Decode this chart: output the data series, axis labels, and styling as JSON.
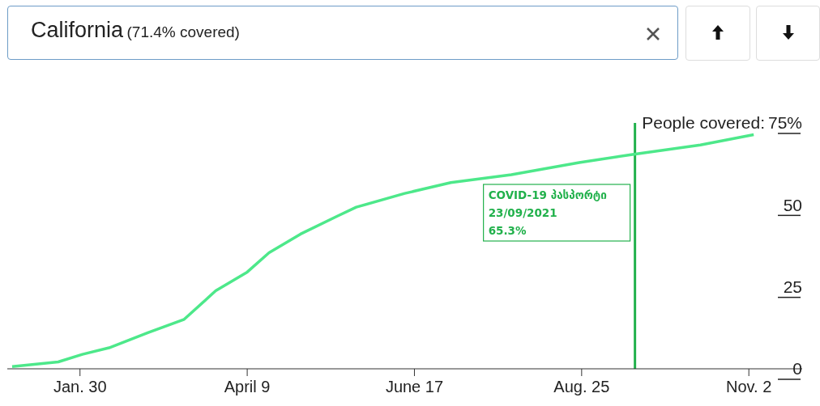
{
  "chart_data": {
    "type": "line",
    "title": "California",
    "subtitle": "(71.4% covered)",
    "ylabel": "People covered:",
    "x": [
      "2021-01-02",
      "2021-01-21",
      "2021-01-31",
      "2021-02-11",
      "2021-02-27",
      "2021-03-14",
      "2021-03-27",
      "2021-04-09",
      "2021-04-18",
      "2021-05-01",
      "2021-05-16",
      "2021-05-24",
      "2021-06-13",
      "2021-07-02",
      "2021-07-27",
      "2021-08-24",
      "2021-09-15",
      "2021-10-13",
      "2021-11-04"
    ],
    "series": [
      {
        "color": "#4de88a",
        "values": [
          0.7,
          2.1,
          4.4,
          6.4,
          11.0,
          15.1,
          23.8,
          29.5,
          35.4,
          41.1,
          46.5,
          49.3,
          53.5,
          56.8,
          59.2,
          62.9,
          65.4,
          68.3,
          71.4
        ]
      }
    ],
    "xlim": [
      "2020-12-31",
      "2021-11-24"
    ],
    "xticks": [
      {
        "value": "2021-01-30",
        "label": "Jan. 30"
      },
      {
        "value": "2021-04-09",
        "label": "April 9"
      },
      {
        "value": "2021-06-17",
        "label": "June 17"
      },
      {
        "value": "2021-08-25",
        "label": "Aug. 25"
      },
      {
        "value": "2021-11-02",
        "label": "Nov. 2"
      }
    ],
    "ylim": [
      0,
      75
    ],
    "yticks": [
      0,
      25,
      50,
      {
        "value": 75,
        "label": "75%"
      }
    ],
    "ref_lines": [
      {
        "axis": "x",
        "value": "2021-09-16",
        "label": "COVID-19 პასპორტი\n23/09/2021\n65.3%",
        "color": "#22b14c"
      }
    ],
    "marker": "none",
    "line_style": "solid"
  }
}
